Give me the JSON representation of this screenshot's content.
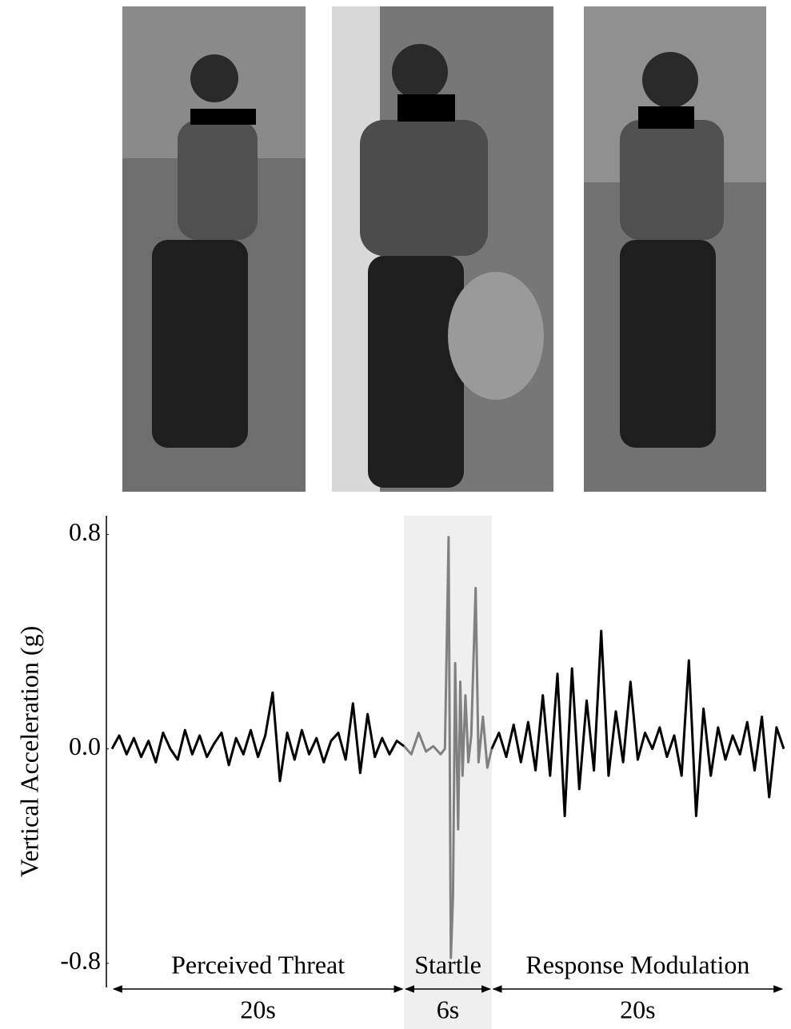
{
  "chart_data": {
    "type": "line",
    "ylabel": "Vertical Acceleration (g)",
    "ylim": [
      -0.89,
      0.87
    ],
    "yticks": [
      -0.8,
      {
        "value": 0,
        "label": "0.0"
      },
      0.8
    ],
    "xlim": [
      0,
      46
    ],
    "highlight": {
      "xlim": [
        20,
        26
      ],
      "color": "#efefef"
    },
    "phases": [
      {
        "label": "Perceived Threat",
        "duration": "20s",
        "x": [
          0,
          20
        ]
      },
      {
        "label": "Startle",
        "duration": "6s",
        "x": [
          20,
          26
        ]
      },
      {
        "label": "Response Modulation",
        "duration": "20s",
        "x": [
          26,
          46
        ]
      }
    ],
    "series": [
      {
        "color": "#000000",
        "x": [
          0,
          0.5,
          1,
          1.5,
          2,
          2.5,
          3,
          3.5,
          4,
          4.5,
          5,
          5.5,
          6,
          6.5,
          7,
          7.5,
          8,
          8.5,
          9,
          9.5,
          10,
          10.5,
          11,
          11.5,
          12,
          12.5,
          13,
          13.5,
          14,
          14.5,
          15,
          15.5,
          16,
          16.5,
          17,
          17.5,
          18,
          18.5,
          19,
          19.5,
          20
        ],
        "values": [
          0.0,
          0.05,
          -0.02,
          0.04,
          -0.03,
          0.03,
          -0.05,
          0.06,
          0.0,
          -0.04,
          0.07,
          -0.02,
          0.05,
          -0.03,
          0.02,
          0.06,
          -0.06,
          0.04,
          -0.02,
          0.07,
          -0.03,
          0.05,
          0.21,
          -0.12,
          0.06,
          -0.04,
          0.07,
          -0.02,
          0.04,
          -0.05,
          0.03,
          0.06,
          -0.04,
          0.17,
          -0.09,
          0.13,
          -0.03,
          0.04,
          -0.02,
          0.03,
          0.01
        ]
      },
      {
        "color": "#808080",
        "x": [
          20,
          20.5,
          21,
          21.5,
          22,
          22.5,
          22.8,
          23.05,
          23.2,
          23.35,
          23.5,
          23.7,
          23.85,
          24,
          24.2,
          24.4,
          24.6,
          24.9,
          25.1,
          25.4,
          25.7,
          26
        ],
        "values": [
          0.01,
          -0.02,
          0.06,
          -0.01,
          0.01,
          -0.02,
          0.0,
          0.79,
          -0.78,
          -0.55,
          0.32,
          -0.3,
          0.25,
          -0.1,
          0.2,
          -0.05,
          0.05,
          0.6,
          -0.05,
          0.12,
          -0.07,
          0.0
        ]
      },
      {
        "color": "#000000",
        "x": [
          26,
          26.5,
          27,
          27.5,
          28,
          28.5,
          29,
          29.5,
          30,
          30.5,
          31,
          31.5,
          32,
          32.5,
          33,
          33.5,
          34,
          34.5,
          35,
          35.5,
          36,
          36.5,
          37,
          37.5,
          38,
          38.5,
          39,
          39.5,
          40,
          40.5,
          41,
          41.5,
          42,
          42.5,
          43,
          43.5,
          44,
          44.5,
          45,
          45.5,
          46
        ],
        "values": [
          0.0,
          0.06,
          -0.03,
          0.09,
          -0.05,
          0.1,
          -0.08,
          0.2,
          -0.1,
          0.28,
          -0.25,
          0.3,
          -0.15,
          0.18,
          -0.08,
          0.44,
          -0.1,
          0.14,
          -0.05,
          0.25,
          -0.04,
          0.06,
          0.0,
          0.08,
          -0.03,
          0.05,
          -0.1,
          0.33,
          -0.25,
          0.15,
          -0.1,
          0.08,
          -0.04,
          0.05,
          -0.02,
          0.1,
          -0.08,
          0.12,
          -0.18,
          0.08,
          0.0
        ]
      }
    ]
  }
}
